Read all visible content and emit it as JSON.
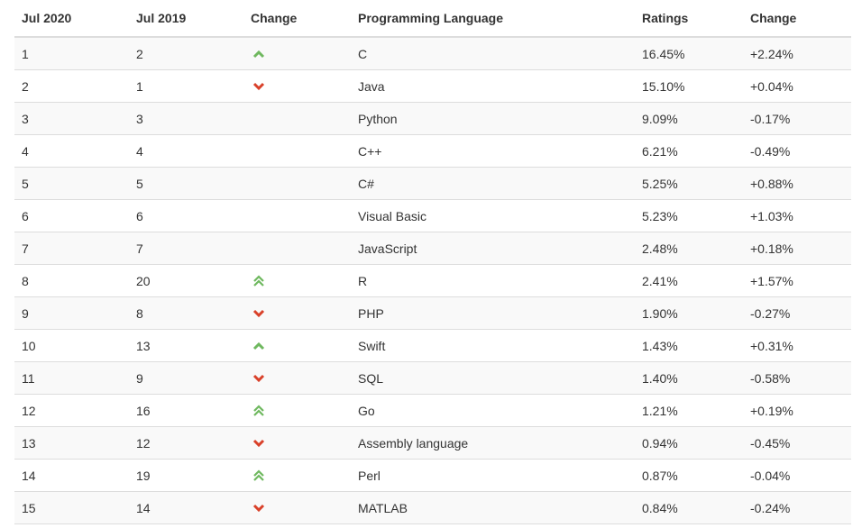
{
  "headers": [
    "Jul 2020",
    "Jul 2019",
    "Change",
    "Programming Language",
    "Ratings",
    "Change"
  ],
  "colors": {
    "up": "#6fb85f",
    "down": "#d9412a"
  },
  "rows": [
    {
      "jul2020": "1",
      "jul2019": "2",
      "trend": "up",
      "language": "C",
      "rating": "16.45%",
      "change": "+2.24%"
    },
    {
      "jul2020": "2",
      "jul2019": "1",
      "trend": "down",
      "language": "Java",
      "rating": "15.10%",
      "change": "+0.04%"
    },
    {
      "jul2020": "3",
      "jul2019": "3",
      "trend": "",
      "language": "Python",
      "rating": "9.09%",
      "change": "-0.17%"
    },
    {
      "jul2020": "4",
      "jul2019": "4",
      "trend": "",
      "language": "C++",
      "rating": "6.21%",
      "change": "-0.49%"
    },
    {
      "jul2020": "5",
      "jul2019": "5",
      "trend": "",
      "language": "C#",
      "rating": "5.25%",
      "change": "+0.88%"
    },
    {
      "jul2020": "6",
      "jul2019": "6",
      "trend": "",
      "language": "Visual Basic",
      "rating": "5.23%",
      "change": "+1.03%"
    },
    {
      "jul2020": "7",
      "jul2019": "7",
      "trend": "",
      "language": "JavaScript",
      "rating": "2.48%",
      "change": "+0.18%"
    },
    {
      "jul2020": "8",
      "jul2019": "20",
      "trend": "double-up",
      "language": "R",
      "rating": "2.41%",
      "change": "+1.57%"
    },
    {
      "jul2020": "9",
      "jul2019": "8",
      "trend": "down",
      "language": "PHP",
      "rating": "1.90%",
      "change": "-0.27%"
    },
    {
      "jul2020": "10",
      "jul2019": "13",
      "trend": "up",
      "language": "Swift",
      "rating": "1.43%",
      "change": "+0.31%"
    },
    {
      "jul2020": "11",
      "jul2019": "9",
      "trend": "down",
      "language": "SQL",
      "rating": "1.40%",
      "change": "-0.58%"
    },
    {
      "jul2020": "12",
      "jul2019": "16",
      "trend": "double-up",
      "language": "Go",
      "rating": "1.21%",
      "change": "+0.19%"
    },
    {
      "jul2020": "13",
      "jul2019": "12",
      "trend": "down",
      "language": "Assembly language",
      "rating": "0.94%",
      "change": "-0.45%"
    },
    {
      "jul2020": "14",
      "jul2019": "19",
      "trend": "double-up",
      "language": "Perl",
      "rating": "0.87%",
      "change": "-0.04%"
    },
    {
      "jul2020": "15",
      "jul2019": "14",
      "trend": "down",
      "language": "MATLAB",
      "rating": "0.84%",
      "change": "-0.24%"
    }
  ]
}
